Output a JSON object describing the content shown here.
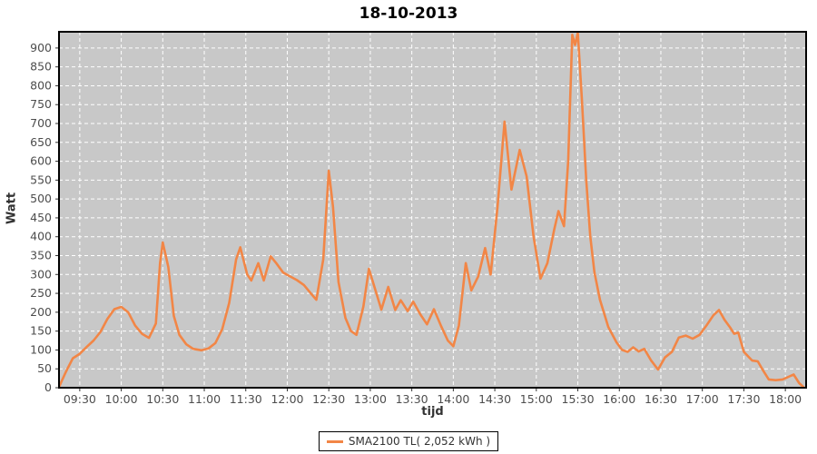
{
  "title": "18-10-2013",
  "axes": {
    "y_label": "Watt",
    "x_label": "tijd"
  },
  "legend": {
    "label": "SMA2100 TL( 2,052 kWh )"
  },
  "colors": {
    "line": "#F28646",
    "plot_background": "#C8C8C8",
    "grid": "#FFFFFF",
    "plot_border": "#000000",
    "tick_text": "#4d4d4d",
    "page_background": "#FFFFFF"
  },
  "chart_data": {
    "type": "line",
    "title": "18-10-2013",
    "xlabel": "tijd",
    "ylabel": "Watt",
    "x_ticks": [
      "09:30",
      "10:00",
      "10:30",
      "11:00",
      "11:30",
      "12:00",
      "12:30",
      "13:00",
      "13:30",
      "14:00",
      "14:30",
      "15:00",
      "15:30",
      "16:00",
      "16:30",
      "17:00",
      "17:30",
      "18:00"
    ],
    "y_ticks": [
      0,
      50,
      100,
      150,
      200,
      250,
      300,
      350,
      400,
      450,
      500,
      550,
      600,
      650,
      700,
      750,
      800,
      850,
      900
    ],
    "ylim": [
      0,
      943
    ],
    "xlim_time": [
      "09:15",
      "18:15"
    ],
    "grid": "white-dashed",
    "legend_position": "bottom-center",
    "series": [
      {
        "name": "SMA2100 TL( 2,052 kWh )",
        "color": "#F28646",
        "points": [
          [
            "09:15",
            2
          ],
          [
            "09:20",
            42
          ],
          [
            "09:25",
            78
          ],
          [
            "09:30",
            90
          ],
          [
            "09:35",
            108
          ],
          [
            "09:40",
            125
          ],
          [
            "09:45",
            148
          ],
          [
            "09:50",
            182
          ],
          [
            "09:55",
            208
          ],
          [
            "10:00",
            214
          ],
          [
            "10:05",
            200
          ],
          [
            "10:10",
            165
          ],
          [
            "10:15",
            143
          ],
          [
            "10:20",
            132
          ],
          [
            "10:25",
            170
          ],
          [
            "10:28",
            330
          ],
          [
            "10:30",
            385
          ],
          [
            "10:34",
            320
          ],
          [
            "10:38",
            190
          ],
          [
            "10:42",
            140
          ],
          [
            "10:47",
            115
          ],
          [
            "10:52",
            103
          ],
          [
            "10:58",
            99
          ],
          [
            "11:03",
            104
          ],
          [
            "11:08",
            118
          ],
          [
            "11:13",
            155
          ],
          [
            "11:18",
            225
          ],
          [
            "11:23",
            340
          ],
          [
            "11:26",
            372
          ],
          [
            "11:31",
            300
          ],
          [
            "11:34",
            284
          ],
          [
            "11:39",
            330
          ],
          [
            "11:43",
            284
          ],
          [
            "11:48",
            348
          ],
          [
            "11:52",
            330
          ],
          [
            "11:57",
            305
          ],
          [
            "12:02",
            295
          ],
          [
            "12:07",
            285
          ],
          [
            "12:12",
            272
          ],
          [
            "12:17",
            250
          ],
          [
            "12:21",
            233
          ],
          [
            "12:26",
            340
          ],
          [
            "12:30",
            575
          ],
          [
            "12:33",
            480
          ],
          [
            "12:37",
            280
          ],
          [
            "12:42",
            185
          ],
          [
            "12:46",
            150
          ],
          [
            "12:50",
            140
          ],
          [
            "12:55",
            215
          ],
          [
            "12:59",
            315
          ],
          [
            "13:04",
            255
          ],
          [
            "13:08",
            207
          ],
          [
            "13:13",
            267
          ],
          [
            "13:18",
            206
          ],
          [
            "13:22",
            232
          ],
          [
            "13:27",
            203
          ],
          [
            "13:31",
            228
          ],
          [
            "13:36",
            195
          ],
          [
            "13:41",
            168
          ],
          [
            "13:46",
            208
          ],
          [
            "13:51",
            165
          ],
          [
            "13:56",
            125
          ],
          [
            "14:00",
            110
          ],
          [
            "14:04",
            165
          ],
          [
            "14:09",
            330
          ],
          [
            "14:13",
            258
          ],
          [
            "14:18",
            295
          ],
          [
            "14:23",
            370
          ],
          [
            "14:27",
            300
          ],
          [
            "14:32",
            480
          ],
          [
            "14:37",
            705
          ],
          [
            "14:42",
            525
          ],
          [
            "14:48",
            630
          ],
          [
            "14:53",
            560
          ],
          [
            "14:58",
            400
          ],
          [
            "15:03",
            289
          ],
          [
            "15:08",
            330
          ],
          [
            "15:13",
            420
          ],
          [
            "15:16",
            468
          ],
          [
            "15:20",
            428
          ],
          [
            "15:23",
            600
          ],
          [
            "15:26",
            935
          ],
          [
            "15:28",
            908
          ],
          [
            "15:30",
            940
          ],
          [
            "15:33",
            760
          ],
          [
            "15:36",
            553
          ],
          [
            "15:39",
            402
          ],
          [
            "15:42",
            306
          ],
          [
            "15:46",
            233
          ],
          [
            "15:52",
            161
          ],
          [
            "15:58",
            120
          ],
          [
            "16:02",
            100
          ],
          [
            "16:06",
            95
          ],
          [
            "16:10",
            107
          ],
          [
            "16:14",
            96
          ],
          [
            "16:18",
            103
          ],
          [
            "16:23",
            72
          ],
          [
            "16:28",
            48
          ],
          [
            "16:33",
            80
          ],
          [
            "16:38",
            95
          ],
          [
            "16:43",
            133
          ],
          [
            "16:48",
            138
          ],
          [
            "16:53",
            130
          ],
          [
            "16:58",
            140
          ],
          [
            "17:03",
            165
          ],
          [
            "17:08",
            192
          ],
          [
            "17:12",
            206
          ],
          [
            "17:16",
            180
          ],
          [
            "17:20",
            160
          ],
          [
            "17:23",
            143
          ],
          [
            "17:26",
            146
          ],
          [
            "17:30",
            95
          ],
          [
            "17:36",
            72
          ],
          [
            "17:40",
            70
          ],
          [
            "17:44",
            45
          ],
          [
            "17:48",
            22
          ],
          [
            "17:53",
            20
          ],
          [
            "17:58",
            22
          ],
          [
            "18:03",
            30
          ],
          [
            "18:06",
            35
          ],
          [
            "18:10",
            12
          ],
          [
            "18:13",
            2
          ]
        ]
      }
    ]
  }
}
